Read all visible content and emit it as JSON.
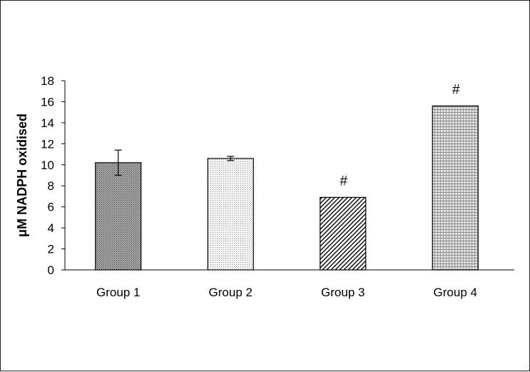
{
  "chart_data": {
    "type": "bar",
    "title": "",
    "xlabel": "",
    "ylabel": "μM NADPH oxidised",
    "ylim": [
      0,
      18
    ],
    "yticks": [
      0,
      2,
      4,
      6,
      8,
      10,
      12,
      14,
      16,
      18
    ],
    "categories": [
      "Group 1",
      "Group 2",
      "Group 3",
      "Group 4"
    ],
    "values": [
      10.2,
      10.6,
      6.9,
      15.6
    ],
    "errors": [
      1.2,
      0.2,
      null,
      null
    ],
    "annotations": [
      "",
      "",
      "#",
      "#"
    ],
    "patterns": [
      "dense-dots",
      "light-dots",
      "diagonal-hatch",
      "brick-dots"
    ],
    "grid": false,
    "legend": "none"
  }
}
